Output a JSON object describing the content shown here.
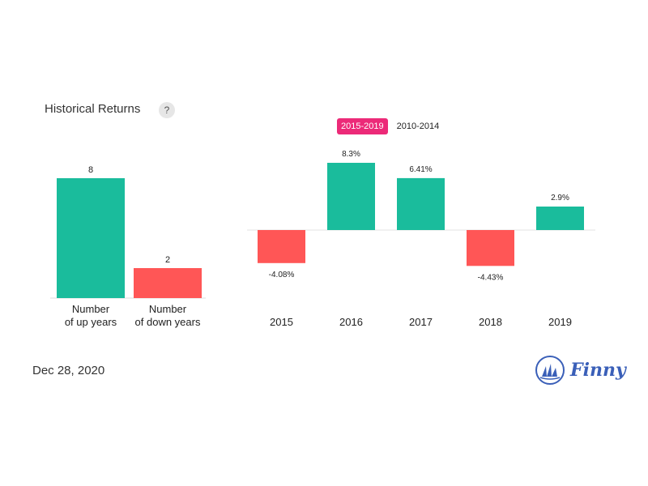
{
  "header": {
    "title": "Historical Returns",
    "help_label": "?"
  },
  "tabs": [
    {
      "label": "2015-2019",
      "active": true
    },
    {
      "label": "2010-2014",
      "active": false
    }
  ],
  "footer": {
    "date": "Dec 28, 2020",
    "brand": "Finny"
  },
  "colors": {
    "positive": "#1abc9c",
    "negative": "#ff5656",
    "accent": "#ec2a78",
    "brand": "#3a5fb8"
  },
  "chart_data": [
    {
      "type": "bar",
      "categories": [
        [
          "Number",
          "of up years"
        ],
        [
          "Number",
          "of down years"
        ]
      ],
      "values": [
        8,
        2
      ],
      "value_labels": [
        "8",
        "2"
      ],
      "colors": [
        "#1abc9c",
        "#ff5656"
      ],
      "ylim": [
        0,
        8
      ]
    },
    {
      "type": "bar",
      "categories": [
        "2015",
        "2016",
        "2017",
        "2018",
        "2019"
      ],
      "values": [
        -4.08,
        8.3,
        6.41,
        -4.43,
        2.9
      ],
      "value_labels": [
        "-4.08%",
        "8.3%",
        "6.41%",
        "-4.43%",
        "2.9%"
      ],
      "ylim": [
        -4.43,
        8.3
      ]
    }
  ]
}
